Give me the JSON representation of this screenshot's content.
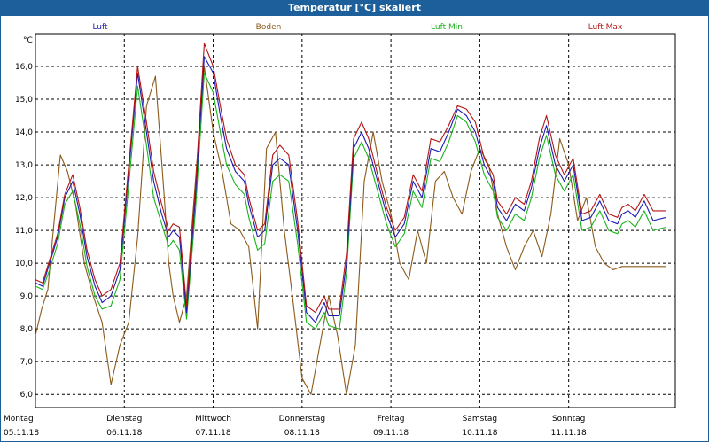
{
  "window": {
    "title": "Temperatur [°C] skaliert"
  },
  "colors": {
    "titlebar": "#1c5f9a"
  },
  "chart_data": {
    "type": "line",
    "title": "Temperatur [°C] skaliert",
    "ylabel": "°C",
    "xlabel": "",
    "ylim": [
      5.6,
      17.0
    ],
    "xlim": [
      0,
      7.2
    ],
    "grid": true,
    "legend_placement": "top",
    "yticks": [
      6.0,
      7.0,
      8.0,
      9.0,
      10.0,
      11.0,
      12.0,
      13.0,
      14.0,
      15.0,
      16.0
    ],
    "ytick_labels": [
      "6,0",
      "7,0",
      "8,0",
      "9,0",
      "10,0",
      "11,0",
      "12,0",
      "13,0",
      "14,0",
      "15,0",
      "16,0"
    ],
    "x_categories": [
      {
        "day": "Montag",
        "date": "05.11.18"
      },
      {
        "day": "Dienstag",
        "date": "06.11.18"
      },
      {
        "day": "Mittwoch",
        "date": "07.11.18"
      },
      {
        "day": "Donnerstag",
        "date": "08.11.18"
      },
      {
        "day": "Freitag",
        "date": "09.11.18"
      },
      {
        "day": "Samstag",
        "date": "10.11.18"
      },
      {
        "day": "Sonntag",
        "date": "11.11.18"
      }
    ],
    "series": [
      {
        "name": "Luft",
        "color": "#1a1ab4",
        "x": [
          0,
          0.08,
          0.16,
          0.25,
          0.33,
          0.42,
          0.5,
          0.58,
          0.67,
          0.75,
          0.85,
          0.95,
          1.05,
          1.15,
          1.25,
          1.33,
          1.42,
          1.5,
          1.55,
          1.62,
          1.7,
          1.8,
          1.9,
          2.0,
          2.08,
          2.15,
          2.25,
          2.35,
          2.4,
          2.5,
          2.58,
          2.67,
          2.75,
          2.85,
          2.95,
          3.05,
          3.15,
          3.25,
          3.3,
          3.42,
          3.5,
          3.58,
          3.67,
          3.75,
          3.85,
          3.95,
          4.05,
          4.15,
          4.25,
          4.35,
          4.45,
          4.55,
          4.65,
          4.75,
          4.85,
          4.95,
          5.05,
          5.15,
          5.2,
          5.3,
          5.4,
          5.5,
          5.58,
          5.67,
          5.75,
          5.85,
          5.95,
          6.05,
          6.15,
          6.25,
          6.35,
          6.45,
          6.55,
          6.6,
          6.67,
          6.75,
          6.85,
          6.95,
          7.1
        ],
        "y": [
          9.4,
          9.3,
          10.0,
          10.8,
          12.0,
          12.5,
          11.5,
          10.2,
          9.3,
          8.8,
          9.0,
          9.8,
          12.8,
          15.8,
          14.0,
          12.5,
          11.5,
          10.8,
          11.0,
          10.8,
          8.5,
          12.0,
          16.3,
          15.8,
          14.5,
          13.5,
          12.8,
          12.5,
          11.8,
          10.8,
          11.0,
          13.0,
          13.2,
          13.0,
          11.0,
          8.5,
          8.2,
          8.8,
          8.4,
          8.4,
          10.0,
          13.5,
          14.0,
          13.5,
          12.5,
          11.5,
          10.8,
          11.2,
          12.5,
          12.0,
          13.5,
          13.4,
          14.0,
          14.7,
          14.5,
          14.0,
          13.0,
          12.5,
          11.7,
          11.3,
          11.8,
          11.6,
          12.3,
          13.5,
          14.2,
          13.0,
          12.5,
          13.0,
          11.3,
          11.4,
          11.9,
          11.3,
          11.2,
          11.5,
          11.6,
          11.4,
          11.9,
          11.3,
          11.4
        ]
      },
      {
        "name": "Boden",
        "color": "#8b5a1b",
        "x": [
          0,
          0.07,
          0.14,
          0.2,
          0.28,
          0.36,
          0.45,
          0.55,
          0.65,
          0.75,
          0.85,
          0.95,
          1.05,
          1.15,
          1.25,
          1.35,
          1.45,
          1.5,
          1.55,
          1.62,
          1.7,
          1.8,
          1.9,
          2.0,
          2.1,
          2.2,
          2.3,
          2.4,
          2.5,
          2.6,
          2.7,
          2.8,
          2.9,
          3.0,
          3.1,
          3.2,
          3.3,
          3.4,
          3.5,
          3.6,
          3.7,
          3.8,
          3.9,
          4.0,
          4.1,
          4.2,
          4.3,
          4.4,
          4.5,
          4.6,
          4.7,
          4.8,
          4.9,
          5.0,
          5.1,
          5.2,
          5.3,
          5.4,
          5.5,
          5.6,
          5.7,
          5.8,
          5.9,
          6.0,
          6.1,
          6.2,
          6.3,
          6.4,
          6.5,
          6.6,
          6.7,
          6.8,
          6.9,
          7.0,
          7.1
        ],
        "y": [
          7.8,
          8.6,
          9.2,
          11.0,
          13.3,
          12.8,
          11.8,
          10.0,
          9.0,
          8.2,
          6.3,
          7.5,
          8.2,
          10.8,
          14.8,
          15.7,
          12.0,
          10.0,
          9.0,
          8.2,
          9.0,
          12.5,
          16.0,
          14.0,
          12.8,
          11.2,
          11.0,
          10.5,
          8.0,
          13.5,
          14.0,
          11.0,
          8.8,
          6.5,
          6.0,
          7.5,
          9.0,
          7.8,
          6.0,
          7.5,
          12.5,
          14.0,
          12.5,
          11.5,
          10.0,
          9.5,
          11.0,
          10.0,
          12.5,
          12.8,
          12.0,
          11.5,
          12.8,
          13.5,
          13.0,
          11.5,
          10.5,
          9.8,
          10.5,
          11.0,
          10.2,
          11.5,
          13.8,
          13.0,
          11.3,
          12.0,
          10.5,
          10.0,
          9.8,
          9.9,
          9.9,
          9.9,
          9.9,
          9.9,
          9.9
        ]
      },
      {
        "name": "Luft Min",
        "color": "#19b419",
        "x": [
          0,
          0.08,
          0.16,
          0.25,
          0.33,
          0.42,
          0.5,
          0.58,
          0.67,
          0.75,
          0.85,
          0.95,
          1.05,
          1.15,
          1.25,
          1.33,
          1.42,
          1.5,
          1.55,
          1.62,
          1.7,
          1.8,
          1.9,
          2.0,
          2.08,
          2.15,
          2.25,
          2.35,
          2.4,
          2.5,
          2.58,
          2.67,
          2.75,
          2.85,
          2.95,
          3.05,
          3.15,
          3.25,
          3.3,
          3.42,
          3.5,
          3.58,
          3.67,
          3.75,
          3.85,
          3.95,
          4.05,
          4.15,
          4.25,
          4.35,
          4.45,
          4.55,
          4.65,
          4.75,
          4.85,
          4.95,
          5.05,
          5.15,
          5.2,
          5.3,
          5.4,
          5.5,
          5.58,
          5.67,
          5.75,
          5.85,
          5.95,
          6.05,
          6.15,
          6.25,
          6.35,
          6.45,
          6.55,
          6.6,
          6.67,
          6.75,
          6.85,
          6.95,
          7.1
        ],
        "y": [
          9.3,
          9.2,
          9.8,
          10.6,
          11.8,
          12.2,
          11.2,
          9.9,
          9.0,
          8.6,
          8.7,
          9.5,
          12.4,
          15.4,
          13.6,
          12.0,
          11.2,
          10.5,
          10.7,
          10.4,
          8.3,
          11.6,
          15.8,
          15.2,
          14.0,
          13.0,
          12.4,
          12.1,
          11.4,
          10.4,
          10.6,
          12.5,
          12.7,
          12.5,
          10.6,
          8.2,
          8.0,
          8.5,
          8.1,
          8.0,
          9.7,
          13.2,
          13.7,
          13.2,
          12.2,
          11.2,
          10.5,
          10.9,
          12.2,
          11.7,
          13.2,
          13.1,
          13.7,
          14.5,
          14.3,
          13.7,
          12.7,
          12.2,
          11.4,
          11.0,
          11.5,
          11.3,
          12.0,
          13.2,
          13.9,
          12.7,
          12.2,
          12.7,
          11.0,
          11.1,
          11.6,
          11.0,
          10.9,
          11.2,
          11.3,
          11.1,
          11.6,
          11.0,
          11.1
        ]
      },
      {
        "name": "Luft Max",
        "color": "#b41414",
        "x": [
          0,
          0.08,
          0.16,
          0.25,
          0.33,
          0.42,
          0.5,
          0.58,
          0.67,
          0.75,
          0.85,
          0.95,
          1.05,
          1.15,
          1.25,
          1.33,
          1.42,
          1.5,
          1.55,
          1.62,
          1.7,
          1.8,
          1.9,
          2.0,
          2.08,
          2.15,
          2.25,
          2.35,
          2.4,
          2.5,
          2.58,
          2.67,
          2.75,
          2.85,
          2.95,
          3.05,
          3.15,
          3.25,
          3.3,
          3.42,
          3.5,
          3.58,
          3.67,
          3.75,
          3.85,
          3.95,
          4.05,
          4.15,
          4.25,
          4.35,
          4.45,
          4.55,
          4.65,
          4.75,
          4.85,
          4.95,
          5.05,
          5.15,
          5.2,
          5.3,
          5.4,
          5.5,
          5.58,
          5.67,
          5.75,
          5.85,
          5.95,
          6.05,
          6.15,
          6.25,
          6.35,
          6.45,
          6.55,
          6.6,
          6.67,
          6.75,
          6.85,
          6.95,
          7.1
        ],
        "y": [
          9.5,
          9.4,
          10.1,
          10.9,
          12.1,
          12.7,
          11.7,
          10.4,
          9.5,
          9.0,
          9.2,
          10.0,
          13.0,
          16.0,
          14.3,
          12.8,
          11.8,
          11.0,
          11.2,
          11.1,
          8.7,
          12.3,
          16.7,
          16.0,
          14.8,
          13.8,
          13.0,
          12.7,
          12.0,
          11.0,
          11.2,
          13.3,
          13.6,
          13.3,
          11.3,
          8.7,
          8.5,
          9.0,
          8.6,
          8.6,
          10.3,
          13.8,
          14.3,
          13.8,
          12.7,
          11.7,
          11.0,
          11.4,
          12.7,
          12.2,
          13.8,
          13.7,
          14.2,
          14.8,
          14.7,
          14.3,
          13.2,
          12.7,
          11.9,
          11.5,
          12.0,
          11.8,
          12.5,
          13.8,
          14.5,
          13.3,
          12.7,
          13.2,
          11.5,
          11.6,
          12.1,
          11.5,
          11.4,
          11.7,
          11.8,
          11.6,
          12.1,
          11.6,
          11.6
        ]
      }
    ]
  }
}
